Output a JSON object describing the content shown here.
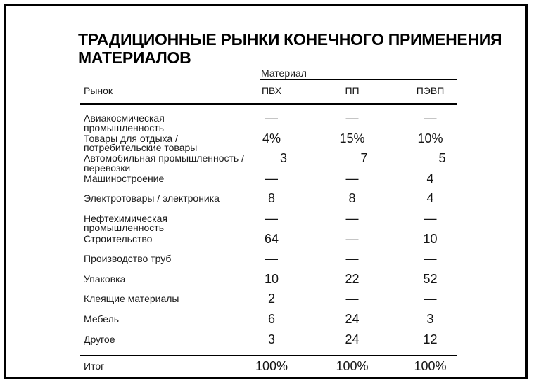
{
  "page": {
    "title": "ТРАДИЦИОННЫЕ РЫНКИ КОНЕЧНОГО ПРИМЕНЕНИЯ\nМАТЕРИАЛОВ"
  },
  "table": {
    "group_header": "Материал",
    "row_axis_header": "Рынок",
    "columns": [
      "ПВХ",
      "ПП",
      "ПЭВП"
    ],
    "rows": [
      {
        "label": "Авиакосмическая\nпромышленность",
        "values": [
          "—",
          "—",
          "—"
        ]
      },
      {
        "label": "Товары для отдыха /\nпотребительские товары",
        "values": [
          "4%",
          "15%",
          "10%"
        ]
      },
      {
        "label": "Автомобильная промышленность /\nперевозки",
        "values": [
          "3",
          "7",
          "5"
        ]
      },
      {
        "label": "Машиностроение",
        "values": [
          "—",
          "—",
          "4"
        ]
      },
      {
        "label": "Электротовары / электроника",
        "values": [
          "8",
          "8",
          "4"
        ]
      },
      {
        "label": "Нефтехимическая\nпромышленность",
        "values": [
          "—",
          "—",
          "—"
        ]
      },
      {
        "label": "Строительство",
        "values": [
          "64",
          "—",
          "10"
        ]
      },
      {
        "label": "Производство труб",
        "values": [
          "—",
          "—",
          "—"
        ]
      },
      {
        "label": "Упаковка",
        "values": [
          "10",
          "22",
          "52"
        ]
      },
      {
        "label": "Клеящие материалы",
        "values": [
          "2",
          "—",
          "—"
        ]
      },
      {
        "label": "Мебель",
        "values": [
          "6",
          "24",
          "3"
        ]
      },
      {
        "label": "Другое",
        "values": [
          "3",
          "24",
          "12"
        ]
      }
    ],
    "total_row": {
      "label": "Итог",
      "values": [
        "100%",
        "100%",
        "100%"
      ]
    }
  },
  "colors": {
    "background": "#ffffff",
    "text": "#1a1a1a",
    "title": "#000000",
    "rule": "#000000",
    "frame_border": "#000000"
  }
}
